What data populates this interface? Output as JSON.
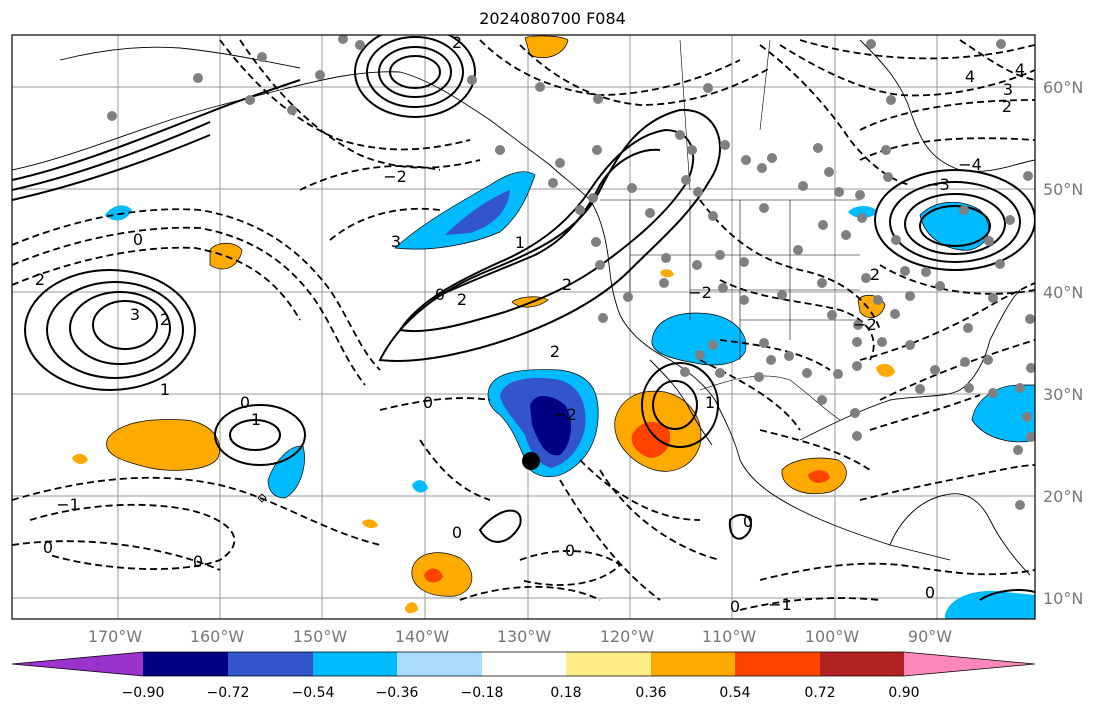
{
  "title": "2024080700 F084",
  "lat_labels": [
    "60°N",
    "50°N",
    "40°N",
    "30°N",
    "20°N",
    "10°N"
  ],
  "lon_labels": [
    "170°W",
    "160°W",
    "150°W",
    "140°W",
    "130°W",
    "120°W",
    "110°W",
    "100°W",
    "90°W"
  ],
  "colorbar": {
    "ticks": [
      "−0.90",
      "−0.72",
      "−0.54",
      "−0.36",
      "−0.18",
      "0.18",
      "0.36",
      "0.54",
      "0.72",
      "0.90"
    ],
    "colors": [
      "#9933cc",
      "#000080",
      "#3355cc",
      "#00bbff",
      "#aaddff",
      "#ffffff",
      "#ffee88",
      "#ffaa00",
      "#ff4400",
      "#b22222",
      "#ff88bb"
    ]
  },
  "contour_labels": {
    "l1": "2",
    "l2": "4",
    "l3": "3",
    "l4": "−2",
    "l5": "0",
    "l6": "2",
    "l7": "3",
    "l8": "1",
    "l9": "0",
    "l10": "2",
    "l11": "2",
    "l12": "1",
    "l13": "0",
    "l14": "1",
    "l15": "0",
    "l16": "−1",
    "l17": "0",
    "l18": "0",
    "l19": "0",
    "l20": "−4",
    "l21": "−3",
    "l22": "−2",
    "l23": "0",
    "l24": "4",
    "l25": "2",
    "l26": "−2",
    "l27": "0",
    "l28": "0",
    "l29": "−1",
    "l30": "2",
    "l31": "2",
    "l32": "0",
    "l33": "1",
    "l34": "3",
    "l35": "−2",
    "l36": "2"
  }
}
